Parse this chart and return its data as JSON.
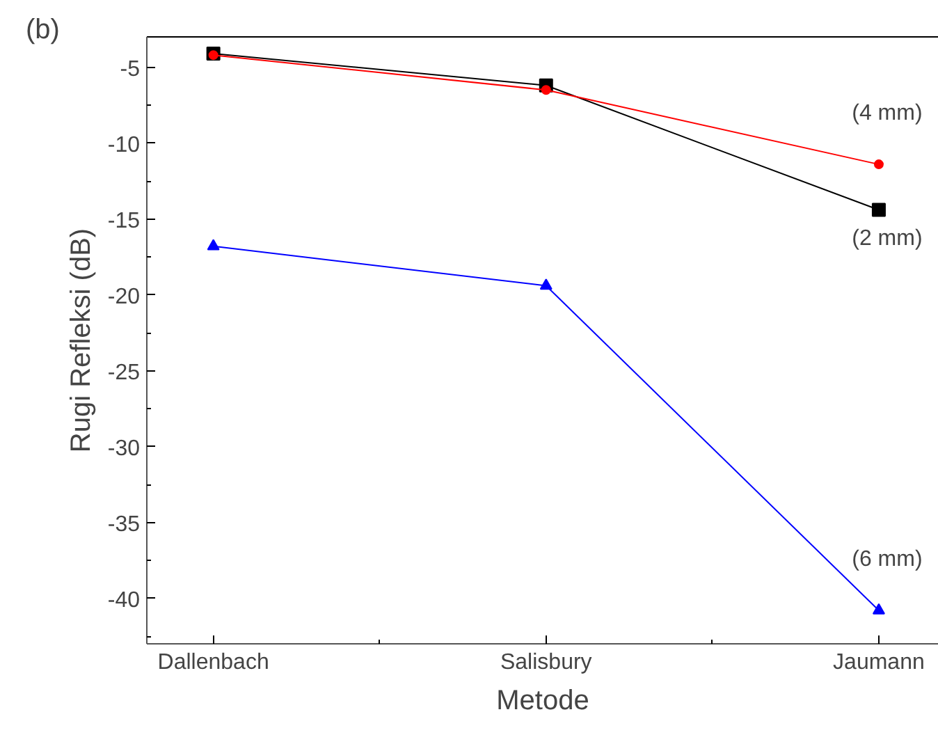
{
  "chart_data": {
    "type": "line",
    "xlabel": "Metode",
    "ylabel": "Rugi Refleksi (dB)",
    "categories": [
      "Dallenbach",
      "Salisbury",
      "Jaumann"
    ],
    "series": [
      {
        "name": "(2 mm)",
        "color": "#000000",
        "marker": "square",
        "values": [
          -4.1,
          -6.2,
          -14.4
        ]
      },
      {
        "name": "(4 mm)",
        "color": "#ff0000",
        "marker": "circle",
        "values": [
          -4.2,
          -6.5,
          -11.4
        ]
      },
      {
        "name": "(6 mm)",
        "color": "#0000ff",
        "marker": "triangle",
        "values": [
          -16.8,
          -19.4,
          -40.8
        ]
      }
    ],
    "ylim": [
      -43,
      -3
    ],
    "yticks": [
      -5,
      -10,
      -15,
      -20,
      -25,
      -30,
      -35,
      -40
    ],
    "grid": false,
    "annotations": [
      "(b)"
    ]
  }
}
